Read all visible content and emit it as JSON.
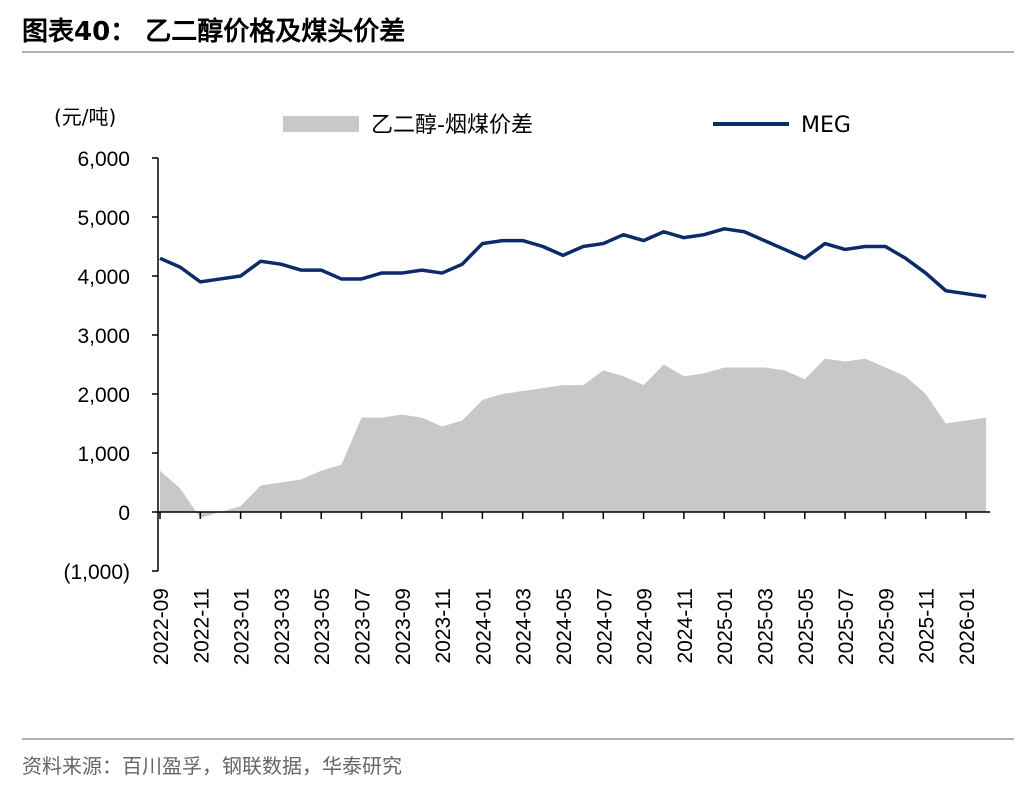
{
  "header": {
    "title": "图表40：  乙二醇价格及煤头价差"
  },
  "chart_data": {
    "type": "combo",
    "y_unit": "(元/吨)",
    "categories": [
      "2022-09",
      null,
      "2022-11",
      null,
      "2023-01",
      null,
      "2023-03",
      null,
      "2023-05",
      null,
      "2023-07",
      null,
      "2023-09",
      null,
      "2023-11",
      null,
      "2024-01",
      null,
      "2024-03",
      null,
      "2024-05",
      null,
      "2024-07",
      null,
      "2024-09",
      null,
      "2024-11",
      null,
      "2025-01",
      null,
      "2025-03",
      null,
      "2025-05",
      null,
      "2025-07",
      null,
      "2025-09",
      null,
      "2025-11",
      null,
      "2026-01",
      null
    ],
    "series": [
      {
        "name": "乙二醇-烟煤价差",
        "type": "area",
        "color": "#c8c8c8",
        "values": [
          700,
          400,
          -100,
          0,
          100,
          450,
          500,
          550,
          700,
          800,
          1600,
          1600,
          1650,
          1600,
          1450,
          1550,
          1900,
          2000,
          2050,
          2100,
          2150,
          2150,
          2400,
          2300,
          2150,
          2500,
          2300,
          2350,
          2450,
          2450,
          2450,
          2400,
          2250,
          2600,
          2550,
          2600,
          2450,
          2300,
          2000,
          1500,
          1550,
          1600
        ]
      },
      {
        "name": "MEG",
        "type": "line",
        "color": "#0d2a6b",
        "values": [
          4300,
          4150,
          3900,
          3950,
          4000,
          4250,
          4200,
          4100,
          4100,
          3950,
          3950,
          4050,
          4050,
          4100,
          4050,
          4200,
          4550,
          4600,
          4600,
          4500,
          4350,
          4500,
          4550,
          4700,
          4600,
          4750,
          4650,
          4700,
          4800,
          4750,
          4600,
          4450,
          4300,
          4550,
          4450,
          4500,
          4500,
          4300,
          4050,
          3750,
          3700,
          3650
        ]
      }
    ],
    "ylim": [
      -1000,
      6000
    ],
    "yticks": [
      {
        "value": -1000,
        "label": "(1,000)"
      },
      0,
      {
        "value": 1000,
        "label": "1,000"
      },
      {
        "value": 2000,
        "label": "2,000"
      },
      {
        "value": 3000,
        "label": "3,000"
      },
      {
        "value": 4000,
        "label": "4,000"
      },
      {
        "value": 5000,
        "label": "5,000"
      },
      {
        "value": 6000,
        "label": "6,000"
      }
    ],
    "legend": "top"
  },
  "footer": {
    "source": "资料来源：百川盈孚，钢联数据，华泰研究"
  }
}
